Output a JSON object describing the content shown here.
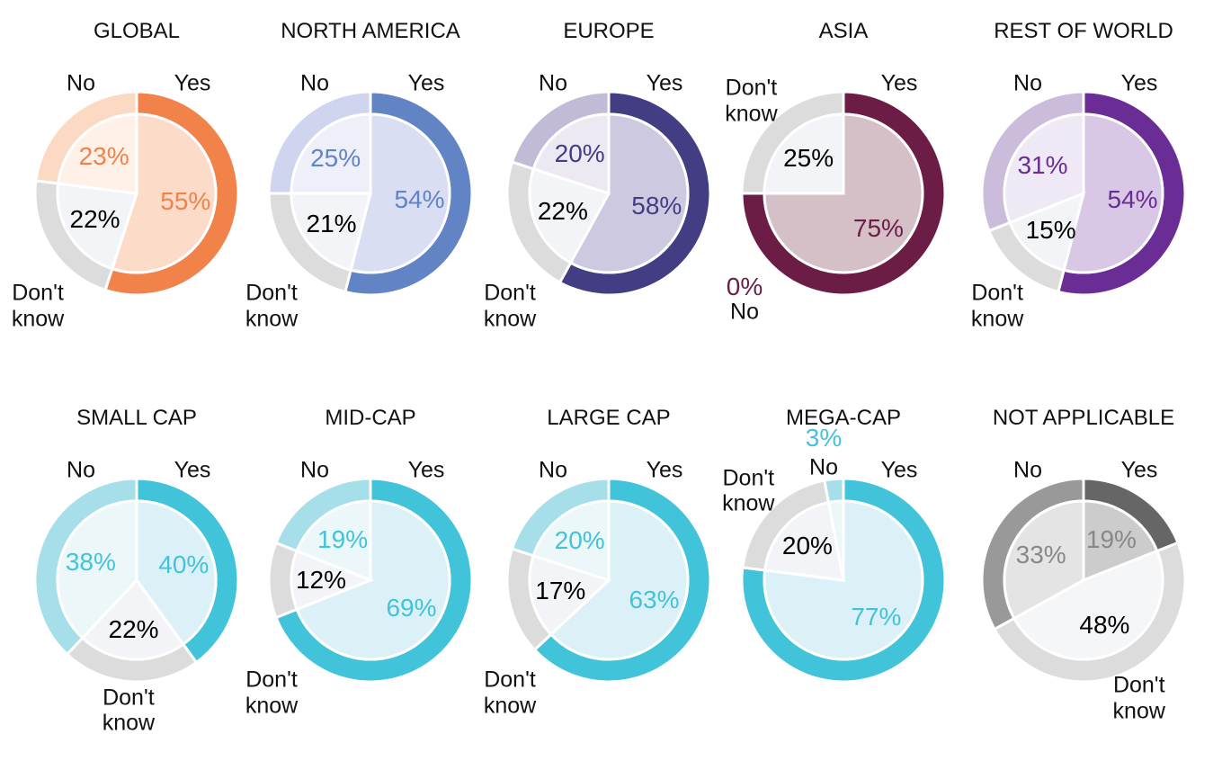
{
  "chart_data": [
    {
      "type": "pie",
      "title": "GLOBAL",
      "categories": [
        "Yes",
        "Don't know",
        "No"
      ],
      "values": [
        55,
        22,
        23
      ],
      "value_labels": [
        "55%",
        "22%",
        "23%"
      ],
      "colors": [
        "#f0824a",
        "#dcdcdc",
        "#fcd9c3"
      ],
      "inner_colors": [
        "#fcdcc8",
        "#f2f4f7",
        "#fff1e8"
      ],
      "label_colors": [
        "#f0824a",
        "#000000",
        "#f0824a"
      ]
    },
    {
      "type": "pie",
      "title": "NORTH AMERICA",
      "categories": [
        "Yes",
        "Don't know",
        "No"
      ],
      "values": [
        54,
        21,
        25
      ],
      "value_labels": [
        "54%",
        "21%",
        "25%"
      ],
      "colors": [
        "#6283c4",
        "#dcdcdc",
        "#cfd5ee"
      ],
      "inner_colors": [
        "#d9def2",
        "#f2f4f7",
        "#eef0f9"
      ],
      "label_colors": [
        "#6283c4",
        "#000000",
        "#6283c4"
      ]
    },
    {
      "type": "pie",
      "title": "EUROPE",
      "categories": [
        "Yes",
        "Don't know",
        "No"
      ],
      "values": [
        58,
        22,
        20
      ],
      "value_labels": [
        "58%",
        "22%",
        "20%"
      ],
      "colors": [
        "#433e84",
        "#dcdcdc",
        "#c1bbd6"
      ],
      "inner_colors": [
        "#cdc9e0",
        "#f2f4f7",
        "#ece9f2"
      ],
      "label_colors": [
        "#433e84",
        "#000000",
        "#433e84"
      ]
    },
    {
      "type": "pie",
      "title": "ASIA",
      "categories": [
        "Yes",
        "Don't know",
        "No"
      ],
      "values": [
        75,
        25,
        0
      ],
      "value_labels": [
        "75%",
        "25%",
        "0%"
      ],
      "colors": [
        "#6b1d45",
        "#dcdcdc",
        "#c9a9b8"
      ],
      "inner_colors": [
        "#d4c0c6",
        "#f2f4f7",
        "#efe4e9"
      ],
      "label_colors": [
        "#6b1d45",
        "#000000",
        "#6b1d45"
      ]
    },
    {
      "type": "pie",
      "title": "REST OF WORLD",
      "categories": [
        "Yes",
        "Don't know",
        "No"
      ],
      "values": [
        54,
        15,
        31
      ],
      "value_labels": [
        "54%",
        "15%",
        "31%"
      ],
      "colors": [
        "#6a2c95",
        "#dcdcdc",
        "#cbbcdc"
      ],
      "inner_colors": [
        "#d8c8e6",
        "#f2f4f7",
        "#efe9f5"
      ],
      "label_colors": [
        "#6a2c95",
        "#000000",
        "#6a2c95"
      ]
    },
    {
      "type": "pie",
      "title": "SMALL CAP",
      "categories": [
        "Yes",
        "Don't know",
        "No"
      ],
      "values": [
        40,
        22,
        38
      ],
      "value_labels": [
        "40%",
        "22%",
        "38%"
      ],
      "colors": [
        "#41c3da",
        "#dcdcdc",
        "#a6deea"
      ],
      "inner_colors": [
        "#dcf1f7",
        "#f2f4f7",
        "#ecf7fa"
      ],
      "label_colors": [
        "#41c3da",
        "#000000",
        "#41c3da"
      ]
    },
    {
      "type": "pie",
      "title": "MID-CAP",
      "categories": [
        "Yes",
        "Don't know",
        "No"
      ],
      "values": [
        69,
        12,
        19
      ],
      "value_labels": [
        "69%",
        "12%",
        "19%"
      ],
      "colors": [
        "#41c3da",
        "#dcdcdc",
        "#a6deea"
      ],
      "inner_colors": [
        "#dcf1f7",
        "#f2f4f7",
        "#ecf7fa"
      ],
      "label_colors": [
        "#41c3da",
        "#000000",
        "#41c3da"
      ]
    },
    {
      "type": "pie",
      "title": "LARGE CAP",
      "categories": [
        "Yes",
        "Don't know",
        "No"
      ],
      "values": [
        63,
        17,
        20
      ],
      "value_labels": [
        "63%",
        "17%",
        "20%"
      ],
      "colors": [
        "#41c3da",
        "#dcdcdc",
        "#a6deea"
      ],
      "inner_colors": [
        "#dcf1f7",
        "#f2f4f7",
        "#ecf7fa"
      ],
      "label_colors": [
        "#41c3da",
        "#000000",
        "#41c3da"
      ]
    },
    {
      "type": "pie",
      "title": "MEGA-CAP",
      "categories": [
        "Yes",
        "Don't know",
        "No"
      ],
      "values": [
        77,
        20,
        3
      ],
      "value_labels": [
        "77%",
        "20%",
        "3%"
      ],
      "colors": [
        "#41c3da",
        "#dcdcdc",
        "#a6deea"
      ],
      "inner_colors": [
        "#dcf1f7",
        "#f2f4f7",
        "#ecf7fa"
      ],
      "label_colors": [
        "#41c3da",
        "#000000",
        "#41c3da"
      ]
    },
    {
      "type": "pie",
      "title": "NOT APPLICABLE",
      "categories": [
        "Yes",
        "Don't know",
        "No"
      ],
      "values": [
        19,
        48,
        33
      ],
      "value_labels": [
        "19%",
        "48%",
        "33%"
      ],
      "colors": [
        "#666666",
        "#dcdcdc",
        "#999999"
      ],
      "inner_colors": [
        "#cccccc",
        "#f5f6f8",
        "#e4e4e4"
      ],
      "label_colors": [
        "#888888",
        "#000000",
        "#888888"
      ]
    }
  ]
}
